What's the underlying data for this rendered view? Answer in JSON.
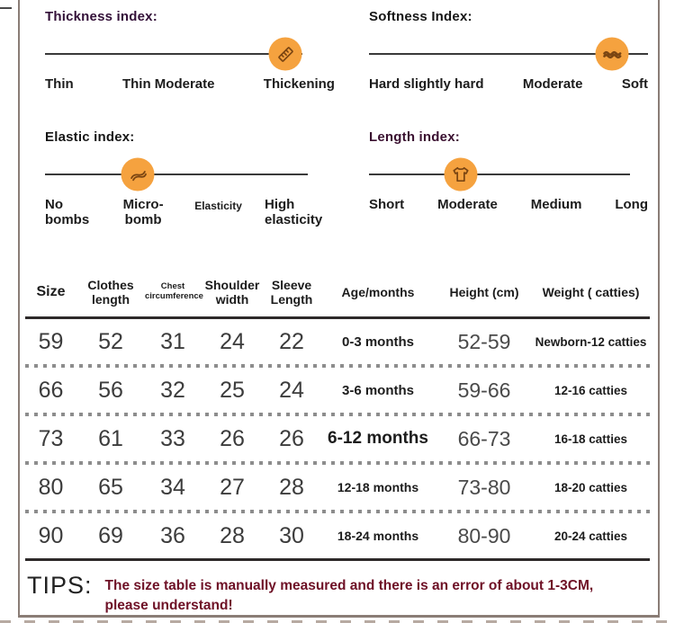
{
  "accent": {
    "circle_color": "#F5A23F",
    "icon_stroke": "#7A4512"
  },
  "frame_color": "#8a7d76",
  "indexes": [
    {
      "title": "Thickness index:",
      "title_color": "#331038",
      "icon": "ruler-icon",
      "marker_pct": 83,
      "labels": [
        "Thin",
        "Thin Moderate",
        "Thickening"
      ]
    },
    {
      "title": "Softness Index:",
      "title_color": "#161616",
      "icon": "wave-icon",
      "marker_pct": 87,
      "labels": [
        "Hard slightly hard",
        "Moderate",
        "Soft"
      ]
    },
    {
      "title": "Elastic index:",
      "title_color": "#161616",
      "icon": "spring-icon",
      "marker_pct": 32,
      "labels": [
        "No bombs",
        "Micro-bomb",
        "Elasticity",
        "High elasticity"
      ]
    },
    {
      "title": "Length index:",
      "title_color": "#3a1030",
      "icon": "tshirt-icon",
      "marker_pct": 33,
      "labels": [
        "Short",
        "Moderate",
        "Medium",
        "Long"
      ]
    }
  ],
  "table": {
    "headers": [
      "Size",
      "Clothes length",
      "Chest circumference",
      "Shoulder width",
      "Sleeve Length",
      "Age/months",
      "Height (cm)",
      "Weight ( catties)"
    ],
    "rows": [
      {
        "size": "59",
        "clothes_length": "52",
        "chest": "31",
        "shoulder": "24",
        "sleeve": "22",
        "age": "0-3 months",
        "height": "52-59",
        "weight": "Newborn-12 catties"
      },
      {
        "size": "66",
        "clothes_length": "56",
        "chest": "32",
        "shoulder": "25",
        "sleeve": "24",
        "age": "3-6 months",
        "height": "59-66",
        "weight": "12-16 catties"
      },
      {
        "size": "73",
        "clothes_length": "61",
        "chest": "33",
        "shoulder": "26",
        "sleeve": "26",
        "age": "6-12 months",
        "height": "66-73",
        "weight": "16-18 catties"
      },
      {
        "size": "80",
        "clothes_length": "65",
        "chest": "34",
        "shoulder": "27",
        "sleeve": "28",
        "age": "12-18 months",
        "height": "73-80",
        "weight": "18-20 catties"
      },
      {
        "size": "90",
        "clothes_length": "69",
        "chest": "36",
        "shoulder": "28",
        "sleeve": "30",
        "age": "18-24 months",
        "height": "80-90",
        "weight": "20-24 catties"
      }
    ]
  },
  "tips": {
    "label": "TIPS:",
    "message": "The size table is manually measured and there is an error of about 1-3CM, please understand!",
    "message_color": "#6E1126"
  }
}
